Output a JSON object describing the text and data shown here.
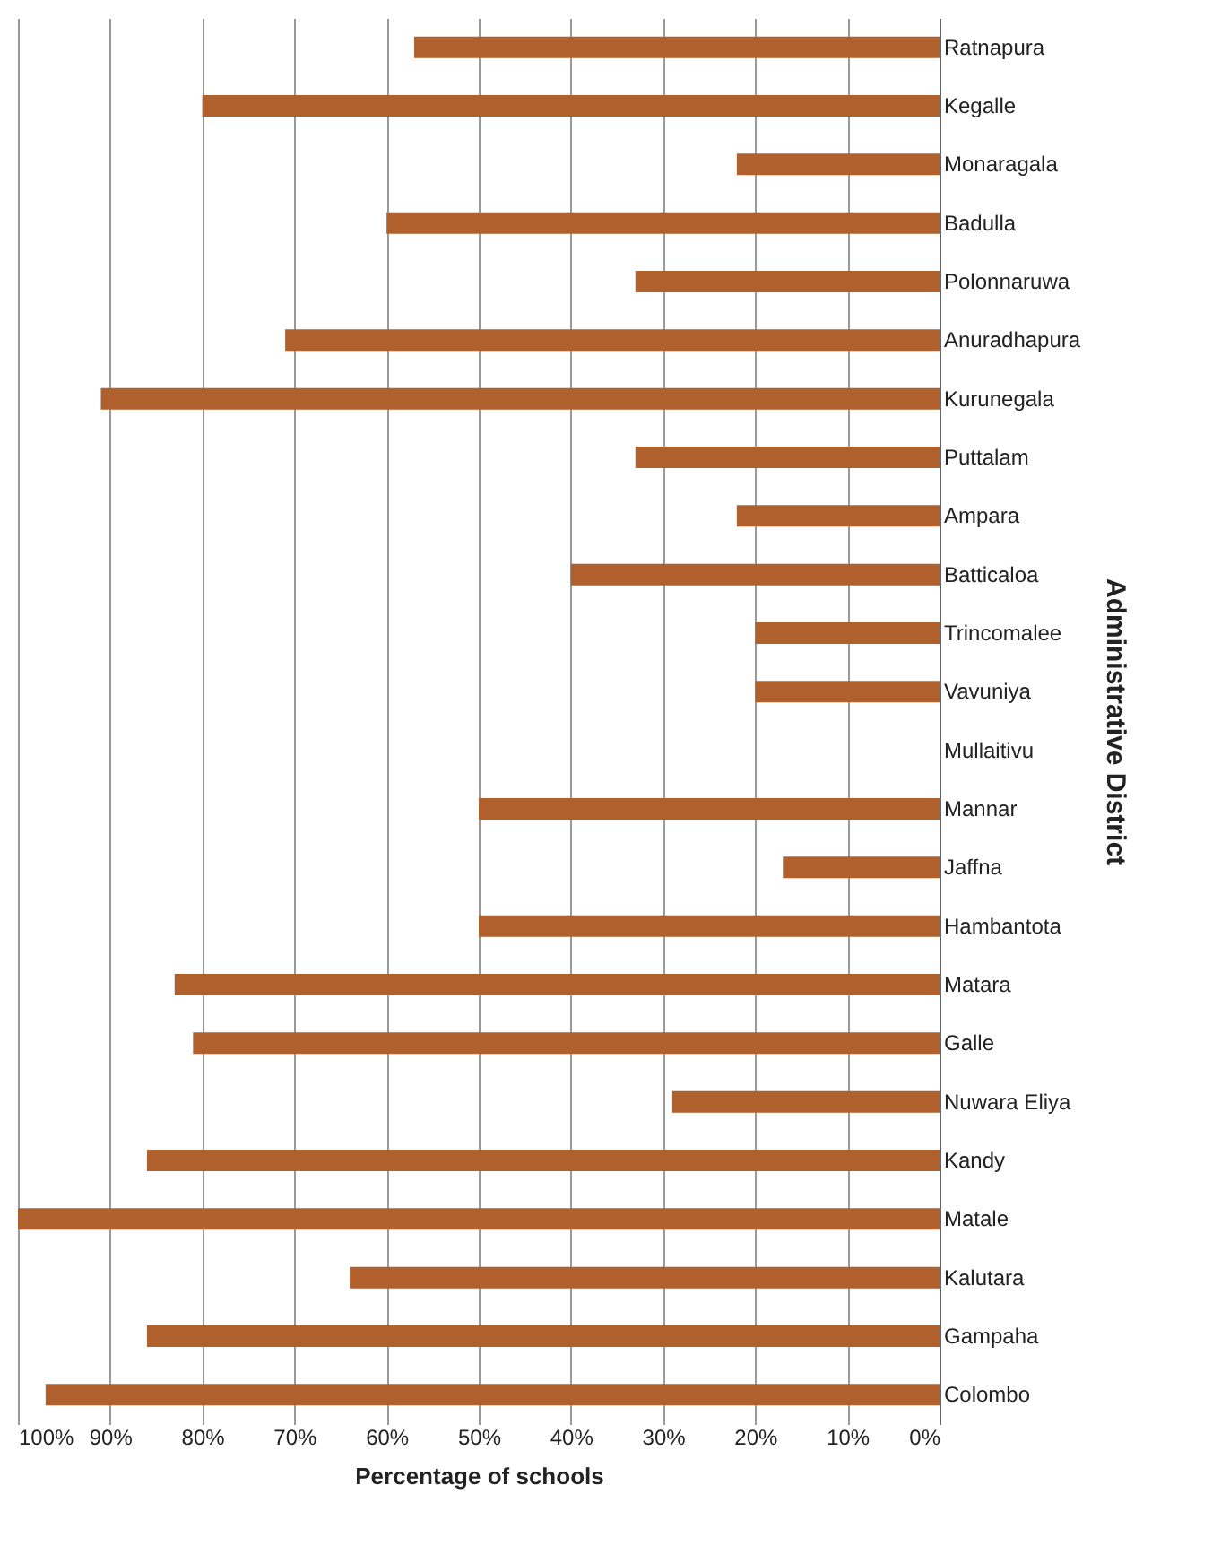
{
  "chart_data": {
    "type": "bar",
    "orientation": "horizontal",
    "xlabel": "Percentage  of schools",
    "ylabel": "Administrative District",
    "categories": [
      "Ratnapura",
      "Kegalle",
      "Monaragala",
      "Badulla",
      "Polonnaruwa",
      "Anuradhapura",
      "Kurunegala",
      "Puttalam",
      "Ampara",
      "Batticaloa",
      "Trincomalee",
      "Vavuniya",
      "Mullaitivu",
      "Mannar",
      "Jaffna",
      "Hambantota",
      "Matara",
      "Galle",
      "Nuwara Eliya",
      "Kandy",
      "Matale",
      "Kalutara",
      "Gampaha",
      "Colombo"
    ],
    "values": [
      57,
      80,
      22,
      60,
      33,
      71,
      91,
      33,
      22,
      40,
      20,
      20,
      0,
      50,
      17,
      50,
      83,
      81,
      29,
      86,
      100,
      64,
      86,
      97
    ],
    "color": "#b0602c",
    "xlim": [
      100,
      0
    ],
    "xticks": [
      {
        "value": 100,
        "label": "100%"
      },
      {
        "value": 90,
        "label": "90%"
      },
      {
        "value": 80,
        "label": "80%"
      },
      {
        "value": 70,
        "label": "70%"
      },
      {
        "value": 60,
        "label": "60%"
      },
      {
        "value": 50,
        "label": "50%"
      },
      {
        "value": 40,
        "label": "40%"
      },
      {
        "value": 30,
        "label": "30%"
      },
      {
        "value": 20,
        "label": "20%"
      },
      {
        "value": 10,
        "label": "10%"
      },
      {
        "value": 0,
        "label": "0%"
      }
    ],
    "grid": "x"
  }
}
